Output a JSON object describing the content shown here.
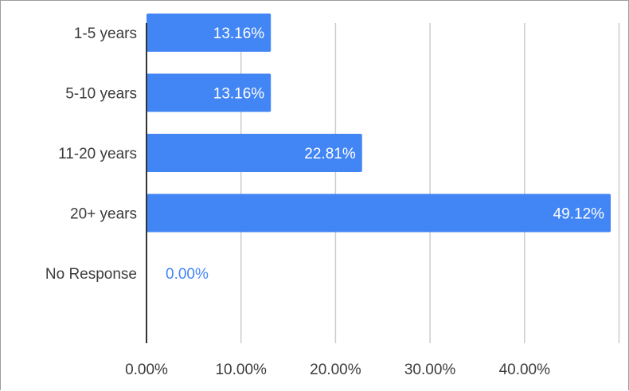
{
  "chart_data": {
    "type": "bar",
    "orientation": "horizontal",
    "categories": [
      "1-5 years",
      "5-10 years",
      "11-20 years",
      "20+ years",
      "No Response"
    ],
    "values": [
      13.16,
      13.16,
      22.81,
      49.12,
      0.0
    ],
    "value_labels": [
      "13.16%",
      "13.16%",
      "22.81%",
      "49.12%",
      "0.00%"
    ],
    "x_ticks": [
      0,
      10,
      20,
      30,
      40
    ],
    "x_tick_labels": [
      "0.00%",
      "10.00%",
      "20.00%",
      "30.00%",
      "40.00%"
    ],
    "xlim": [
      0,
      50
    ],
    "grid": true,
    "legend": "none",
    "title": "",
    "xlabel": "",
    "ylabel": "",
    "bar_color": "#4285f4",
    "label_inside_color": "#ffffff",
    "label_outside_color": "#4285f4",
    "grid_color": "#cccccc",
    "axis_color": "#333333",
    "text_color": "#3c3c3c"
  }
}
